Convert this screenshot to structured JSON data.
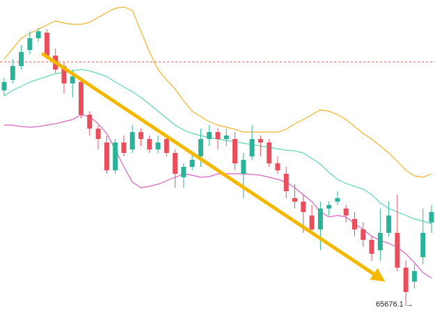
{
  "chart_data": {
    "type": "candlestick",
    "ylim": [
      65658,
      66114
    ],
    "up_color": "#2bb39a",
    "down_color": "#e84e5c",
    "open": [
      65984,
      65999,
      66019,
      66042,
      66059,
      66067,
      66034,
      66019,
      65994,
      65996,
      65949,
      65929,
      65909,
      65869,
      65909,
      65899,
      65924,
      65914,
      65899,
      65914,
      65894,
      65859,
      65874,
      65889,
      65914,
      65924,
      65914,
      65914,
      65864,
      65889,
      65914,
      65909,
      65879,
      65864,
      65829,
      65824,
      65804,
      65784,
      65814,
      65824,
      65814,
      65799,
      65784,
      65769,
      65754,
      65779,
      65779,
      65729,
      65709,
      65744,
      65794
    ],
    "high": [
      66002,
      66029,
      66049,
      66069,
      66074,
      66072,
      66044,
      66024,
      66014,
      65999,
      65954,
      65934,
      65919,
      65914,
      65919,
      65934,
      65929,
      65919,
      65919,
      65919,
      65899,
      65879,
      65894,
      65929,
      65934,
      65929,
      65929,
      65924,
      65894,
      65934,
      65919,
      65914,
      65889,
      65874,
      65849,
      65834,
      65819,
      65824,
      65824,
      65839,
      65819,
      65809,
      65794,
      65774,
      65814,
      65824,
      65834,
      65739,
      65734,
      65814,
      65819
    ],
    "low": [
      65976,
      65994,
      66014,
      66036,
      66054,
      66029,
      66009,
      65979,
      65974,
      65944,
      65919,
      65899,
      65864,
      65864,
      65889,
      65894,
      65904,
      65894,
      65894,
      65889,
      65844,
      65844,
      65869,
      65874,
      65904,
      65899,
      65904,
      65869,
      65829,
      65884,
      65889,
      65874,
      65864,
      65829,
      65814,
      65779,
      65779,
      65754,
      65804,
      65819,
      65794,
      65774,
      65759,
      65739,
      65739,
      65774,
      65724,
      65674,
      65699,
      65734,
      65779
    ],
    "close": [
      65996,
      66019,
      66039,
      66059,
      66069,
      66034,
      66014,
      65994,
      66004,
      65949,
      65929,
      65914,
      65869,
      65909,
      65894,
      65924,
      65914,
      65899,
      65909,
      65894,
      65864,
      65874,
      65884,
      65914,
      65924,
      65914,
      65919,
      65879,
      65884,
      65914,
      65909,
      65879,
      65869,
      65839,
      65824,
      65809,
      65784,
      65814,
      65819,
      65829,
      65804,
      65784,
      65769,
      65749,
      65779,
      65804,
      65729,
      65694,
      65724,
      65779,
      65809
    ],
    "series": [
      {
        "color": "#f0b429",
        "values": [
          66029,
          66044,
          66059,
          66066,
          66072,
          66078,
          66084,
          66081,
          66079,
          66079,
          66082,
          66089,
          66096,
          66102,
          66104,
          66099,
          66069,
          66039,
          66014,
          65999,
          65986,
          65969,
          65954,
          65946,
          65939,
          65934,
          65931,
          65928,
          65924,
          65924,
          65924,
          65924,
          65924,
          65928,
          65936,
          65942,
          65949,
          65956,
          65954,
          65949,
          65942,
          65932,
          65922,
          65914,
          65904,
          65894,
          65882,
          65869,
          65861,
          65859,
          65864
        ]
      },
      {
        "color": "#5ed6b4",
        "values": [
          65976,
          65984,
          65990,
          65996,
          66000,
          66004,
          66008,
          66010,
          66012,
          66014,
          66012,
          66008,
          66004,
          65996,
          65989,
          65982,
          65974,
          65964,
          65954,
          65944,
          65934,
          65927,
          65922,
          65919,
          65916,
          65914,
          65912,
          65910,
          65908,
          65906,
          65904,
          65902,
          65900,
          65898,
          65897,
          65894,
          65886,
          65878,
          65866,
          65856,
          65850,
          65846,
          65842,
          65834,
          65822,
          65814,
          65809,
          65804,
          65799,
          65796,
          65792
        ]
      },
      {
        "color": "#d75fc1",
        "values": [
          65934,
          65934,
          65932,
          65931,
          65932,
          65934,
          65936,
          65939,
          65942,
          65949,
          65946,
          65936,
          65922,
          65899,
          65874,
          65852,
          65844,
          65846,
          65849,
          65854,
          65859,
          65864,
          65862,
          65859,
          65860,
          65864,
          65864,
          65864,
          65864,
          65863,
          65862,
          65859,
          65856,
          65852,
          65844,
          65834,
          65824,
          65809,
          65802,
          65804,
          65802,
          65792,
          65784,
          65774,
          65768,
          65764,
          65758,
          65749,
          65736,
          65722,
          65714
        ]
      }
    ],
    "reference_line": {
      "value": 66025,
      "color": "#d9534f"
    },
    "price_label": {
      "value": 65676.1,
      "label": "65676.1 →"
    }
  }
}
